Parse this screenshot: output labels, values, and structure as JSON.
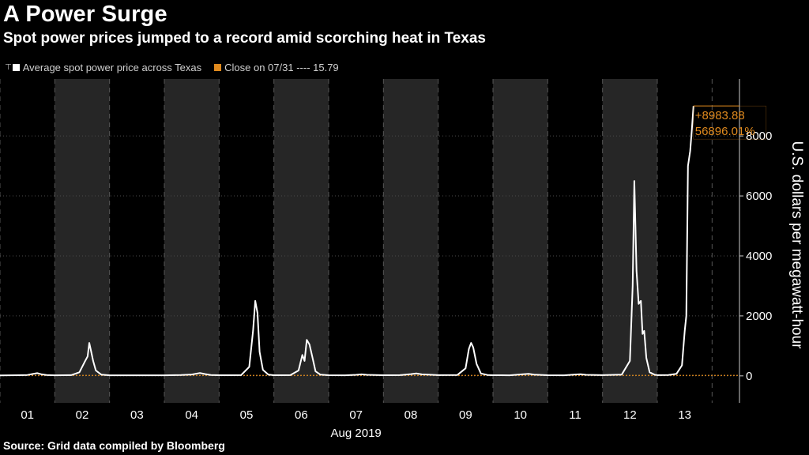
{
  "header": {
    "title": "A Power Surge",
    "subtitle": "Spot power prices jumped to a record amid scorching heat in Texas"
  },
  "legend": {
    "series_label": "Average spot power price across Texas",
    "close_label": "Close on 07/31 ---- 15.79",
    "series_color": "#ffffff",
    "close_color": "#e08a1e"
  },
  "footer": {
    "source": "Source: Grid data compiled by Bloomberg"
  },
  "chart_data": {
    "type": "line",
    "title": "A Power Surge",
    "subtitle": "Spot power prices jumped to a record amid scorching heat in Texas",
    "xlabel": "Aug 2019",
    "ylabel": "U.S. dollars per megawatt-hour",
    "x_ticks": [
      "01",
      "02",
      "03",
      "04",
      "05",
      "06",
      "07",
      "08",
      "09",
      "10",
      "11",
      "12",
      "13"
    ],
    "x_range": [
      0,
      13.5
    ],
    "ylim": [
      -900,
      9900
    ],
    "y_ticks": [
      0,
      2000,
      4000,
      6000,
      8000
    ],
    "y_axis_side": "right",
    "shaded_days": [
      "02",
      "04",
      "06",
      "08",
      "10",
      "12"
    ],
    "reference_line": {
      "label": "Close on 07/31",
      "value": 15.79,
      "color": "#e08a1e"
    },
    "annotation": {
      "change": "+8983.88",
      "percent": "56896.01%",
      "level": 8999.67,
      "color": "#e08a1e"
    },
    "series": [
      {
        "name": "Average spot power price across Texas",
        "color": "#ffffff",
        "points": [
          [
            0.0,
            15
          ],
          [
            0.3,
            22
          ],
          [
            0.5,
            30
          ],
          [
            0.6,
            65
          ],
          [
            0.68,
            90
          ],
          [
            0.75,
            55
          ],
          [
            0.85,
            28
          ],
          [
            1.0,
            20
          ],
          [
            1.3,
            25
          ],
          [
            1.45,
            120
          ],
          [
            1.55,
            480
          ],
          [
            1.6,
            650
          ],
          [
            1.63,
            1100
          ],
          [
            1.66,
            850
          ],
          [
            1.7,
            500
          ],
          [
            1.75,
            180
          ],
          [
            1.85,
            40
          ],
          [
            2.0,
            20
          ],
          [
            2.5,
            18
          ],
          [
            3.0,
            20
          ],
          [
            3.3,
            28
          ],
          [
            3.5,
            45
          ],
          [
            3.65,
            95
          ],
          [
            3.75,
            60
          ],
          [
            3.85,
            30
          ],
          [
            4.0,
            22
          ],
          [
            4.4,
            25
          ],
          [
            4.55,
            300
          ],
          [
            4.62,
            1500
          ],
          [
            4.66,
            2500
          ],
          [
            4.7,
            2100
          ],
          [
            4.74,
            800
          ],
          [
            4.8,
            200
          ],
          [
            4.9,
            40
          ],
          [
            5.0,
            22
          ],
          [
            5.3,
            25
          ],
          [
            5.45,
            180
          ],
          [
            5.52,
            700
          ],
          [
            5.56,
            500
          ],
          [
            5.6,
            1200
          ],
          [
            5.65,
            1050
          ],
          [
            5.7,
            650
          ],
          [
            5.76,
            150
          ],
          [
            5.85,
            40
          ],
          [
            6.0,
            22
          ],
          [
            6.3,
            20
          ],
          [
            6.5,
            35
          ],
          [
            6.6,
            50
          ],
          [
            6.7,
            35
          ],
          [
            7.0,
            22
          ],
          [
            7.3,
            25
          ],
          [
            7.5,
            60
          ],
          [
            7.6,
            80
          ],
          [
            7.7,
            50
          ],
          [
            8.0,
            25
          ],
          [
            8.35,
            30
          ],
          [
            8.5,
            250
          ],
          [
            8.56,
            900
          ],
          [
            8.6,
            1100
          ],
          [
            8.64,
            950
          ],
          [
            8.7,
            400
          ],
          [
            8.78,
            80
          ],
          [
            8.9,
            30
          ],
          [
            9.0,
            22
          ],
          [
            9.3,
            20
          ],
          [
            9.55,
            55
          ],
          [
            9.65,
            70
          ],
          [
            9.75,
            40
          ],
          [
            10.0,
            22
          ],
          [
            10.3,
            20
          ],
          [
            10.5,
            45
          ],
          [
            10.6,
            55
          ],
          [
            10.7,
            35
          ],
          [
            11.0,
            25
          ],
          [
            11.35,
            40
          ],
          [
            11.5,
            500
          ],
          [
            11.55,
            3000
          ],
          [
            11.58,
            6500
          ],
          [
            11.62,
            3500
          ],
          [
            11.66,
            2400
          ],
          [
            11.7,
            2500
          ],
          [
            11.73,
            1400
          ],
          [
            11.76,
            1500
          ],
          [
            11.8,
            600
          ],
          [
            11.86,
            120
          ],
          [
            11.95,
            40
          ],
          [
            12.0,
            25
          ],
          [
            12.2,
            30
          ],
          [
            12.35,
            70
          ],
          [
            12.45,
            350
          ],
          [
            12.5,
            1500
          ],
          [
            12.53,
            2000
          ],
          [
            12.56,
            7000
          ],
          [
            12.6,
            7500
          ],
          [
            12.63,
            8200
          ],
          [
            12.66,
            8999.67
          ]
        ]
      }
    ]
  }
}
